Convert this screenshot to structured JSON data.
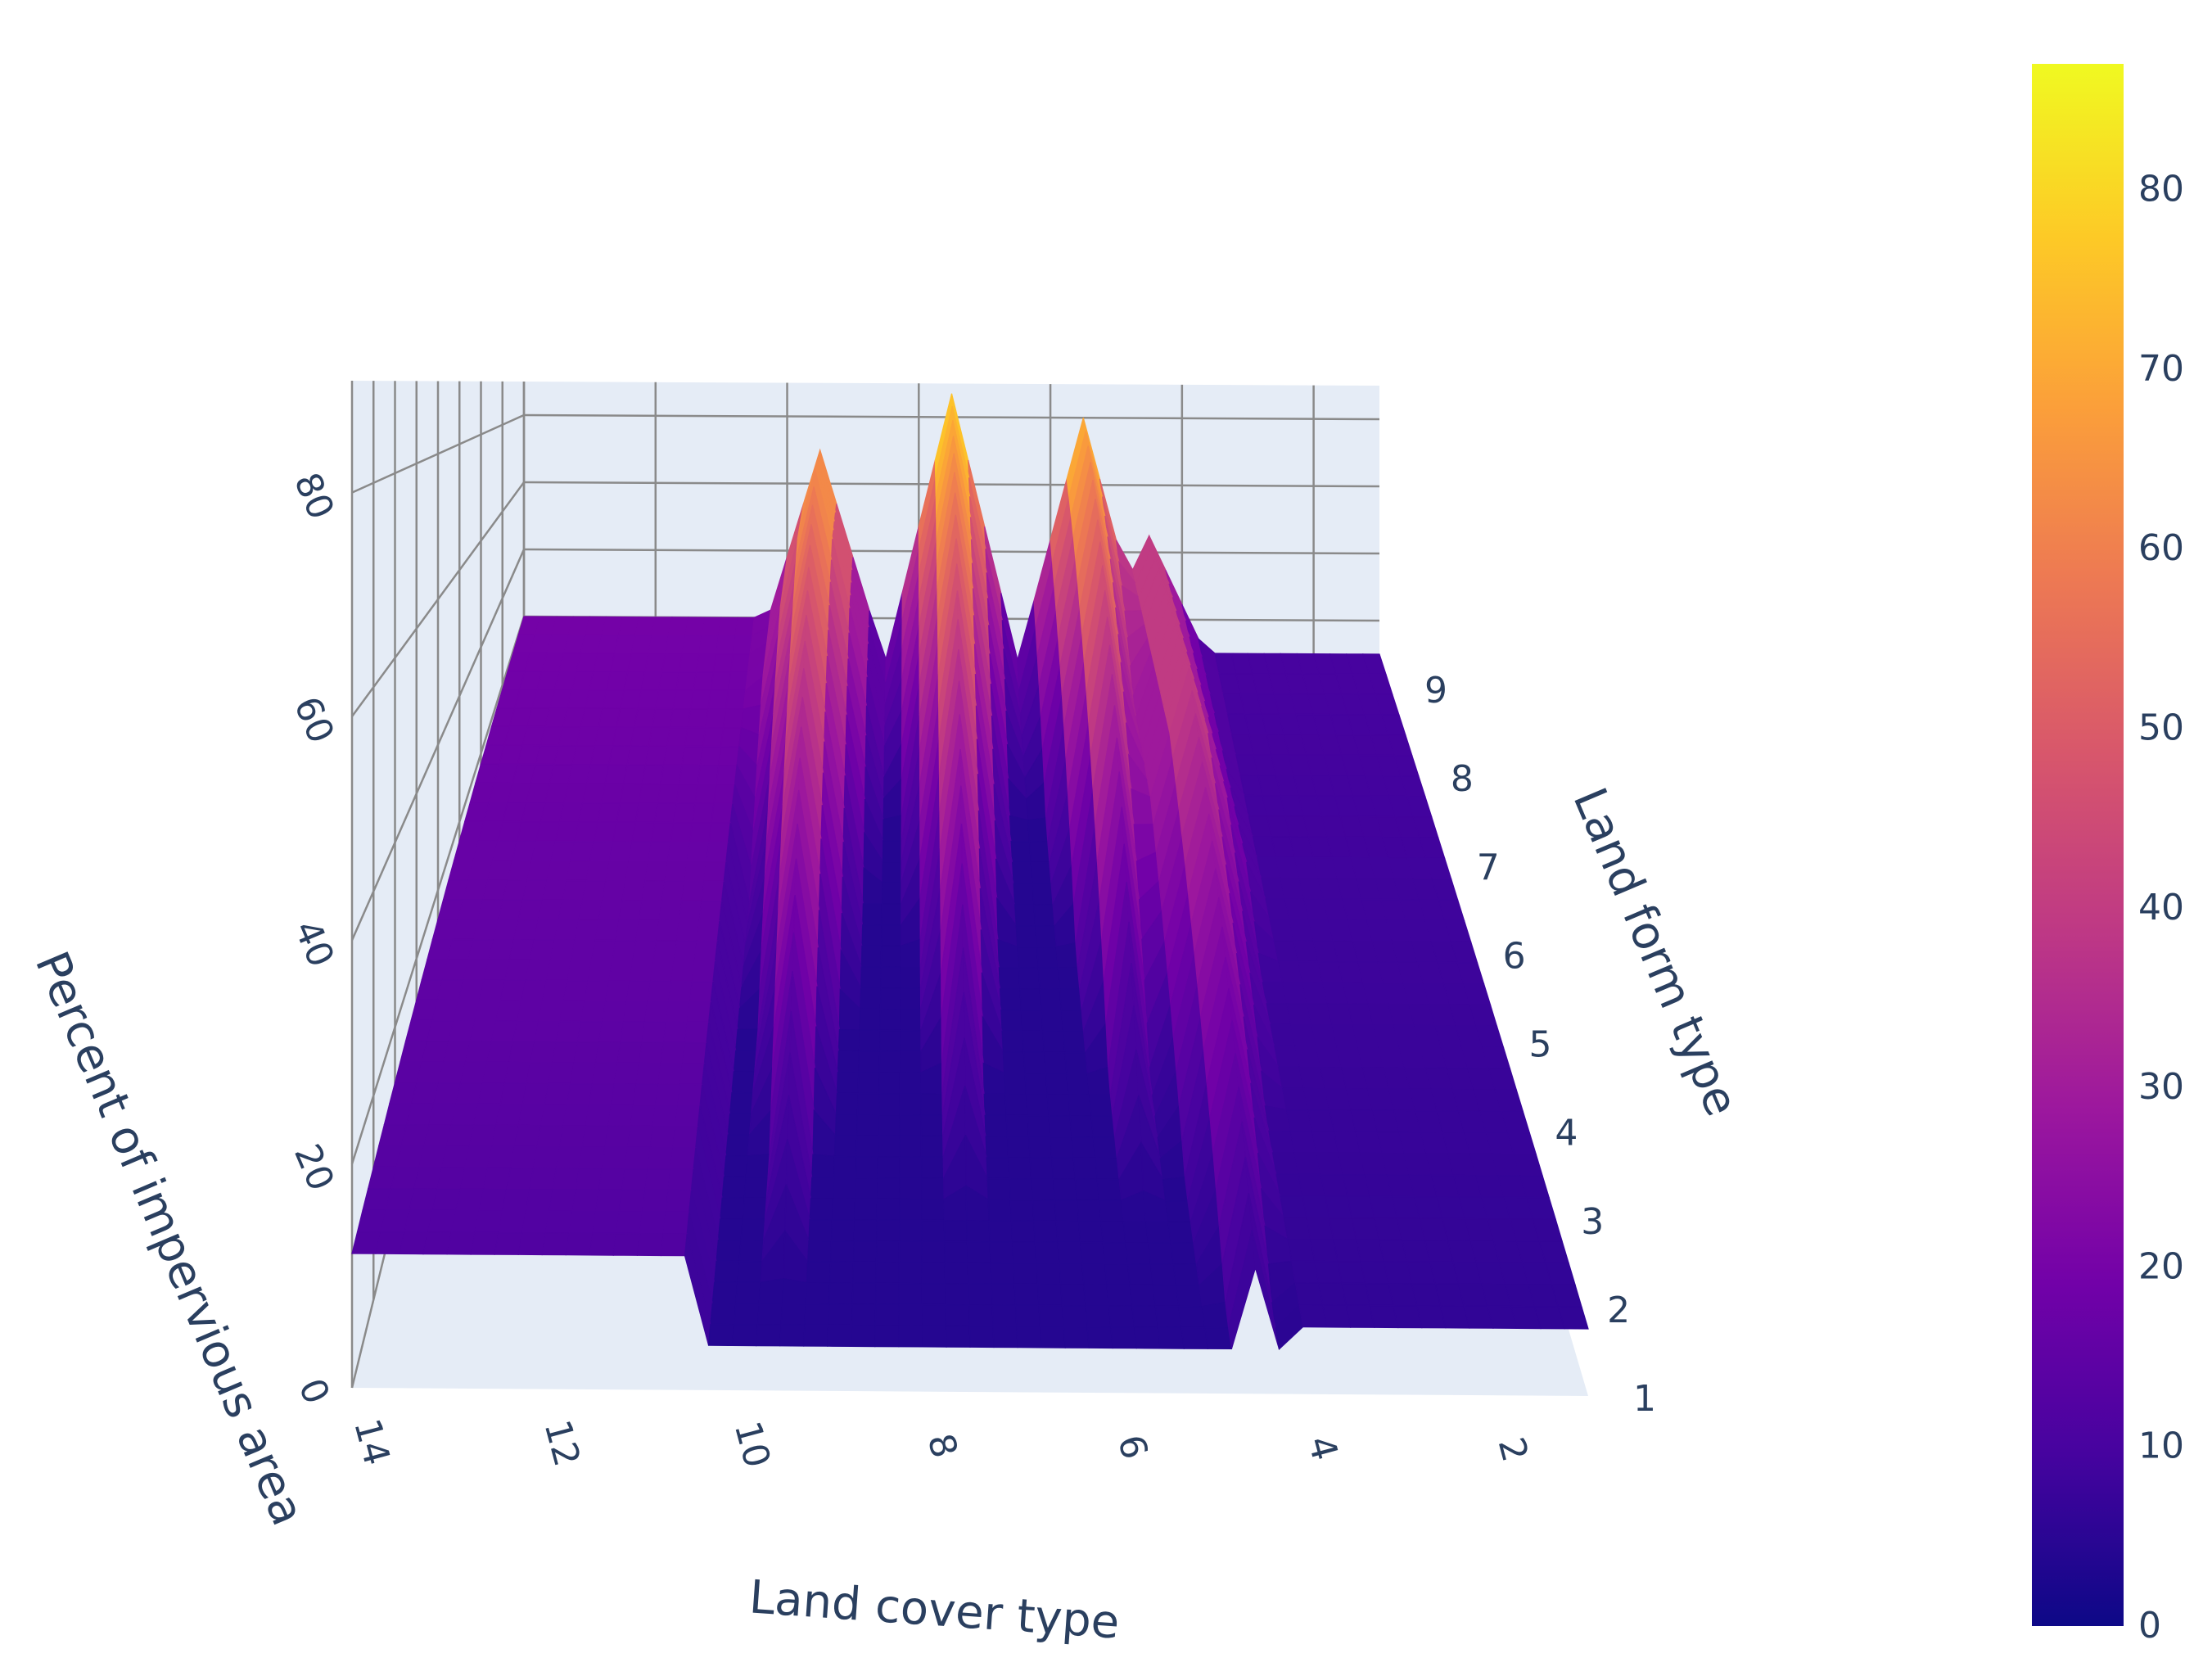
{
  "chart_data": {
    "type": "surface",
    "title": "",
    "xlabel": "Land cover type",
    "ylabel": "Land form type",
    "zlabel": "Percent of impervious area",
    "x_ticks": [
      2,
      4,
      6,
      8,
      10,
      12,
      14
    ],
    "y_ticks": [
      1,
      2,
      3,
      4,
      5,
      6,
      7,
      8,
      9
    ],
    "z_ticks": [
      0,
      20,
      40,
      60,
      80
    ],
    "xlim": [
      1,
      14
    ],
    "ylim": [
      1,
      9
    ],
    "zlim": [
      0,
      90
    ],
    "colorscale": "plasma",
    "colorbar": {
      "ticks": [
        0,
        10,
        20,
        30,
        40,
        50,
        60,
        70,
        80
      ],
      "range": [
        0,
        87
      ]
    },
    "peaks": [
      {
        "land_cover": 7.5,
        "land_form": 9,
        "value": 87
      },
      {
        "land_cover": 9.5,
        "land_form": 8,
        "value": 70
      },
      {
        "land_cover": 5.5,
        "land_form": 9,
        "value": 80
      },
      {
        "land_cover": 4.5,
        "land_form": 6,
        "value": 45
      }
    ],
    "plateaus": [
      {
        "land_cover_range": [
          10.5,
          14
        ],
        "value": 20
      },
      {
        "land_cover_range": [
          1,
          4
        ],
        "value": 10
      }
    ]
  }
}
